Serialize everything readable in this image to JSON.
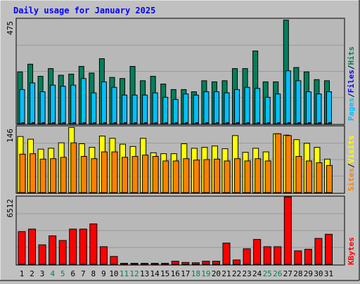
{
  "title": "Daily usage for January 2025",
  "colors": {
    "hits": "#00805c",
    "files": "#00c0ff",
    "pages": "#0000ff",
    "visits": "#ffff00",
    "sites": "#ff8000",
    "kbytes": "#ff0000",
    "weekday_label": "#000000",
    "weekend_label": "#00805c"
  },
  "legend": {
    "pages": "Pages",
    "files": "Files",
    "hits": "Hits",
    "visits": "Visits",
    "sites": "Sites",
    "kbytes": "KBytes",
    "sep": "/"
  },
  "chart_data": [
    {
      "type": "bar",
      "title": "Daily usage for January 2025",
      "ymax_label": "475",
      "ylim": [
        0,
        475
      ],
      "categories": [
        "1",
        "2",
        "3",
        "4",
        "5",
        "6",
        "7",
        "8",
        "9",
        "10",
        "11",
        "12",
        "13",
        "14",
        "15",
        "16",
        "17",
        "18",
        "19",
        "20",
        "21",
        "22",
        "23",
        "24",
        "25",
        "26",
        "27",
        "28",
        "29",
        "30",
        "31"
      ],
      "weekend_days": [
        "4",
        "5",
        "11",
        "12",
        "18",
        "19",
        "25",
        "26"
      ],
      "series": [
        {
          "name": "Hits",
          "values": [
            235,
            270,
            215,
            250,
            220,
            225,
            260,
            230,
            295,
            210,
            205,
            260,
            195,
            215,
            180,
            155,
            155,
            145,
            195,
            190,
            195,
            250,
            250,
            330,
            190,
            190,
            470,
            255,
            235,
            200,
            195
          ]
        },
        {
          "name": "Files",
          "values": [
            155,
            185,
            145,
            175,
            170,
            175,
            205,
            140,
            190,
            165,
            130,
            130,
            130,
            140,
            120,
            110,
            135,
            130,
            145,
            145,
            140,
            155,
            165,
            160,
            120,
            135,
            240,
            195,
            145,
            135,
            145
          ]
        },
        {
          "name": "Pages",
          "values": [
            5,
            5,
            5,
            5,
            5,
            5,
            5,
            5,
            5,
            5,
            5,
            5,
            5,
            5,
            5,
            5,
            5,
            5,
            5,
            5,
            5,
            5,
            5,
            5,
            5,
            5,
            5,
            5,
            5,
            5,
            5
          ]
        }
      ]
    },
    {
      "type": "bar",
      "ymax_label": "146",
      "ylim": [
        0,
        146
      ],
      "categories": [
        "1",
        "2",
        "3",
        "4",
        "5",
        "6",
        "7",
        "8",
        "9",
        "10",
        "11",
        "12",
        "13",
        "14",
        "15",
        "16",
        "17",
        "18",
        "19",
        "20",
        "21",
        "22",
        "23",
        "24",
        "25",
        "26",
        "27",
        "28",
        "29",
        "30",
        "31"
      ],
      "series": [
        {
          "name": "Visits",
          "values": [
            124,
            118,
            96,
            98,
            110,
            144,
            108,
            100,
            125,
            120,
            107,
            102,
            120,
            88,
            86,
            86,
            108,
            98,
            100,
            103,
            97,
            126,
            89,
            98,
            90,
            130,
            127,
            117,
            109,
            100,
            74
          ]
        },
        {
          "name": "Sites",
          "values": [
            85,
            86,
            74,
            75,
            78,
            110,
            80,
            75,
            90,
            90,
            78,
            80,
            83,
            80,
            70,
            70,
            75,
            72,
            73,
            74,
            70,
            75,
            70,
            75,
            70,
            130,
            126,
            80,
            70,
            66,
            60
          ]
        }
      ]
    },
    {
      "type": "bar",
      "ymax_label": "6512",
      "ylim": [
        0,
        6512
      ],
      "categories": [
        "1",
        "2",
        "3",
        "4",
        "5",
        "6",
        "7",
        "8",
        "9",
        "10",
        "11",
        "12",
        "13",
        "14",
        "15",
        "16",
        "17",
        "18",
        "19",
        "20",
        "21",
        "22",
        "23",
        "24",
        "25",
        "26",
        "27",
        "28",
        "29",
        "30",
        "31"
      ],
      "series": [
        {
          "name": "KBytes",
          "values": [
            3150,
            3400,
            1880,
            2750,
            2300,
            3400,
            3400,
            3900,
            1700,
            760,
            100,
            100,
            100,
            100,
            100,
            300,
            180,
            150,
            300,
            300,
            2050,
            420,
            1500,
            2400,
            1700,
            1700,
            6500,
            1300,
            1450,
            2500,
            2900
          ]
        }
      ]
    }
  ]
}
